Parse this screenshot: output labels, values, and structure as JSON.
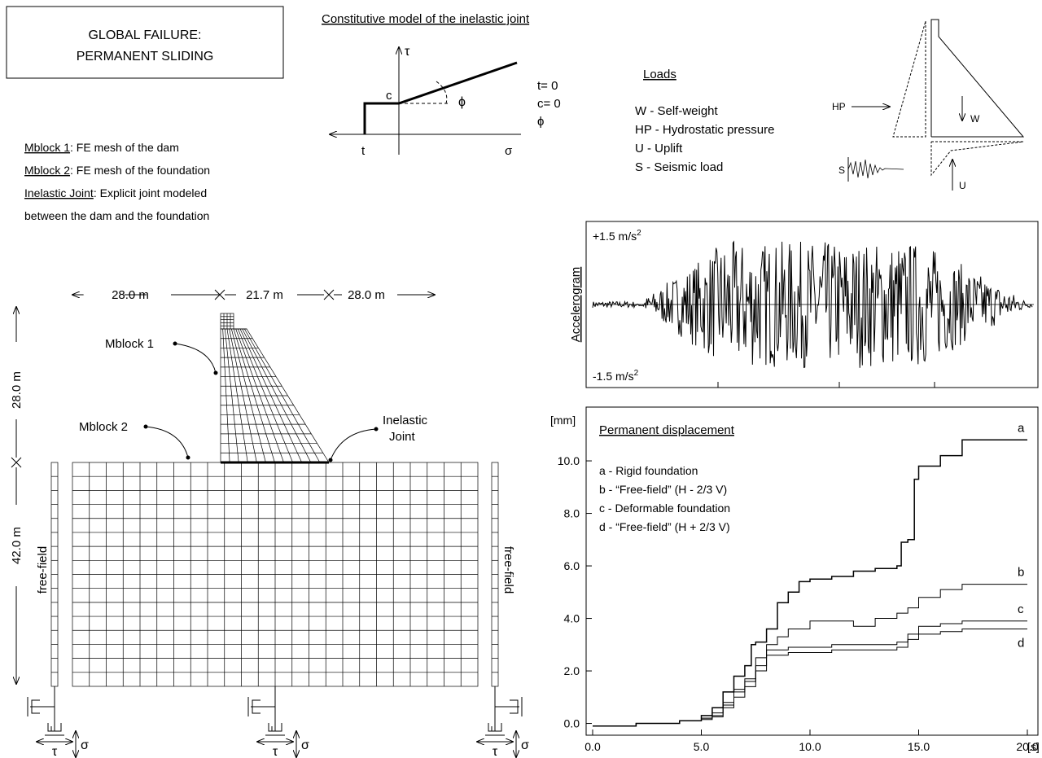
{
  "title_box": {
    "line1": "GLOBAL FAILURE:",
    "line2": "PERMANENT SLIDING"
  },
  "constitutive": {
    "title": "Constitutive model of the inelastic joint",
    "tau": "τ",
    "sigma": "σ",
    "c": "c",
    "t": "t",
    "phi": "ϕ",
    "note1": "t= 0",
    "note2": "c= 0",
    "note3": "ϕ"
  },
  "blocks": {
    "m1_label": "Mblock 1",
    "m1_text": ": FE mesh of the dam",
    "m2_label": "Mblock 2",
    "m2_text": ": FE mesh of the foundation",
    "ij_label": "Inelastic Joint",
    "ij_text": ": Explicit joint modeled",
    "ij_text2": "between the dam and the foundation"
  },
  "loads": {
    "title": "Loads",
    "items": [
      "W - Self-weight",
      "HP - Hydrostatic pressure",
      "U - Uplift",
      "S - Seismic load"
    ],
    "hp": "HP",
    "w": "W",
    "u": "U",
    "s": "S"
  },
  "mesh": {
    "dim_left": "28.0 m",
    "dim_mid": "21.7 m",
    "dim_right": "28.0 m",
    "dim_height_dam": "28.0 m",
    "dim_height_found": "42.0 m",
    "mblock1": "Mblock 1",
    "mblock2": "Mblock 2",
    "joint1": "Inelastic",
    "joint2": "Joint",
    "ff_left": "free-field",
    "ff_right": "free-field",
    "tau": "τ",
    "sigma": "σ"
  },
  "accelerogram": {
    "ylabel": "Accelerogram",
    "top": "+1.5 m/s",
    "bottom": "-1.5 m/s",
    "sup": "2"
  },
  "chart_data": {
    "type": "line",
    "title": "Permanent displacement",
    "ylabel": "[mm]",
    "xunit": "[s]",
    "xlim": [
      0,
      20
    ],
    "ylim": [
      -0.2,
      11.8
    ],
    "xticks": [
      "0.0",
      "5.0",
      "10.0",
      "15.0",
      "20.0"
    ],
    "yticks": [
      "0.0",
      "2.0",
      "4.0",
      "6.0",
      "8.0",
      "10.0"
    ],
    "legend": [
      "a - Rigid foundation",
      "b - “Free-field” (H - 2/3 V)",
      "c - Deformable foundation",
      "d - “Free-field” (H + 2/3 V)"
    ],
    "series": [
      {
        "name": "a",
        "x": [
          0,
          2,
          4,
          5,
          5.5,
          6,
          6.5,
          7,
          7.3,
          7.5,
          8,
          8.5,
          9,
          9.5,
          10,
          11,
          12,
          13,
          14,
          14.2,
          14.5,
          14.8,
          15,
          16,
          17,
          18,
          20
        ],
        "y": [
          -0.1,
          0,
          0.1,
          0.3,
          0.6,
          1.2,
          1.8,
          2.2,
          3.0,
          3.1,
          3.6,
          4.6,
          5.0,
          5.4,
          5.5,
          5.6,
          5.8,
          5.9,
          6.0,
          6.9,
          7.0,
          9.3,
          9.8,
          10.2,
          10.8,
          10.8,
          10.8
        ]
      },
      {
        "name": "b",
        "x": [
          0,
          2,
          4,
          5,
          5.5,
          6,
          6.5,
          7,
          7.5,
          8,
          8.5,
          9,
          10,
          11,
          12,
          13,
          14,
          14.5,
          15,
          16,
          17,
          18,
          20
        ],
        "y": [
          -0.1,
          0,
          0.1,
          0.2,
          0.4,
          0.8,
          1.3,
          1.7,
          2.5,
          3.0,
          3.3,
          3.6,
          3.9,
          3.9,
          3.7,
          4.0,
          4.2,
          4.4,
          4.8,
          5.1,
          5.3,
          5.3,
          5.3
        ]
      },
      {
        "name": "c",
        "x": [
          0,
          2,
          4,
          5,
          5.5,
          6,
          6.5,
          7,
          7.5,
          8,
          9,
          10,
          11,
          12,
          13,
          14,
          14.5,
          15,
          16,
          17,
          18,
          20
        ],
        "y": [
          -0.1,
          0,
          0.1,
          0.2,
          0.3,
          0.7,
          1.2,
          1.6,
          2.2,
          2.8,
          2.9,
          2.9,
          3.0,
          3.0,
          3.0,
          3.1,
          3.4,
          3.7,
          3.8,
          3.9,
          3.9,
          3.9
        ]
      },
      {
        "name": "d",
        "x": [
          0,
          2,
          4,
          5,
          5.5,
          6,
          6.5,
          7,
          7.5,
          8,
          9,
          10,
          11,
          12,
          13,
          14,
          14.5,
          15,
          16,
          17,
          18,
          20
        ],
        "y": [
          -0.1,
          0,
          0.1,
          0.15,
          0.25,
          0.6,
          1.0,
          1.4,
          2.0,
          2.6,
          2.7,
          2.7,
          2.8,
          2.8,
          2.8,
          2.9,
          3.2,
          3.4,
          3.5,
          3.6,
          3.6,
          3.6
        ]
      }
    ]
  }
}
